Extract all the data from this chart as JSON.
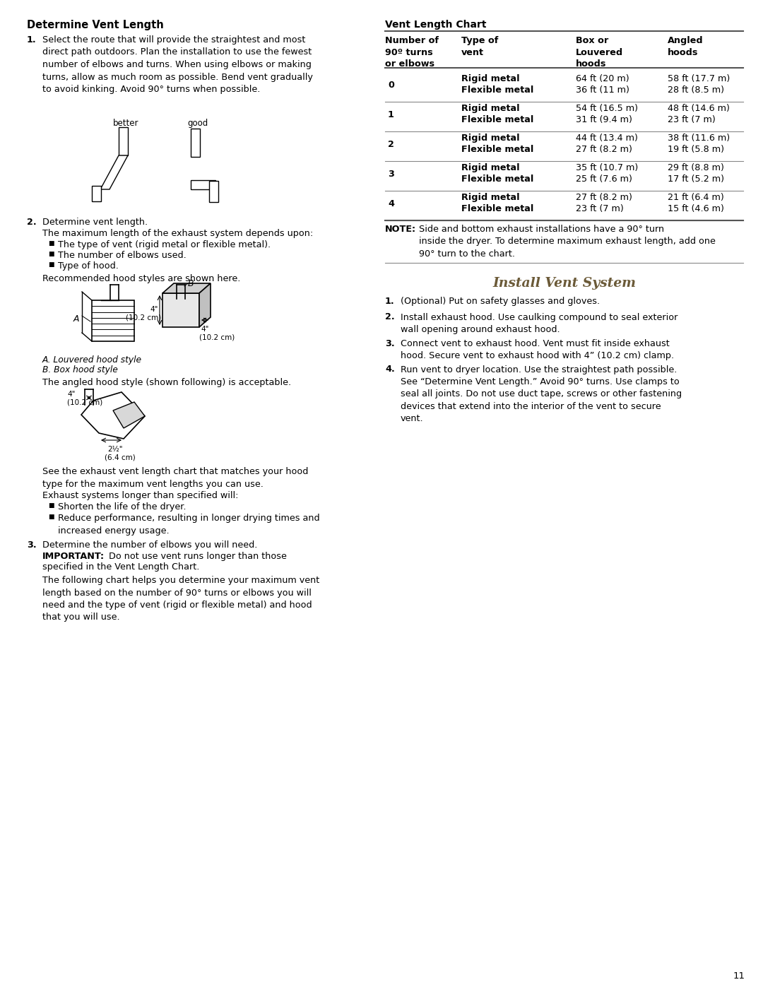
{
  "page_num": "11",
  "bg_color": "#ffffff",
  "left_col": {
    "section_title": "Determine Vent Length",
    "bullet1": "The type of vent (rigid metal or flexible metal).",
    "bullet2": "The number of elbows used.",
    "bullet3": "Type of hood.",
    "caption_A": "A. Louvered hood style",
    "caption_B": "B. Box hood style"
  },
  "right_col": {
    "chart_title": "Vent Length Chart",
    "col_headers": [
      "Number of\n90º turns\nor elbows",
      "Type of\nvent",
      "Box or\nLouvered\nhoods",
      "Angled\nhoods"
    ],
    "rows": [
      {
        "num": "0",
        "types": [
          "Rigid metal",
          "Flexible metal"
        ],
        "box_louvered": [
          "64 ft (20 m)",
          "36 ft (11 m)"
        ],
        "angled": [
          "58 ft (17.7 m)",
          "28 ft (8.5 m)"
        ]
      },
      {
        "num": "1",
        "types": [
          "Rigid metal",
          "Flexible metal"
        ],
        "box_louvered": [
          "54 ft (16.5 m)",
          "31 ft (9.4 m)"
        ],
        "angled": [
          "48 ft (14.6 m)",
          "23 ft (7 m)"
        ]
      },
      {
        "num": "2",
        "types": [
          "Rigid metal",
          "Flexible metal"
        ],
        "box_louvered": [
          "44 ft (13.4 m)",
          "27 ft (8.2 m)"
        ],
        "angled": [
          "38 ft (11.6 m)",
          "19 ft (5.8 m)"
        ]
      },
      {
        "num": "3",
        "types": [
          "Rigid metal",
          "Flexible metal"
        ],
        "box_louvered": [
          "35 ft (10.7 m)",
          "25 ft (7.6 m)"
        ],
        "angled": [
          "29 ft (8.8 m)",
          "17 ft (5.2 m)"
        ]
      },
      {
        "num": "4",
        "types": [
          "Rigid metal",
          "Flexible metal"
        ],
        "box_louvered": [
          "27 ft (8.2 m)",
          "23 ft (7 m)"
        ],
        "angled": [
          "21 ft (6.4 m)",
          "15 ft (4.6 m)"
        ]
      }
    ],
    "install_steps": [
      {
        "num": "1.",
        "text": "(Optional) Put on safety glasses and gloves."
      },
      {
        "num": "2.",
        "text": "Install exhaust hood. Use caulking compound to seal exterior\nwall opening around exhaust hood."
      },
      {
        "num": "3.",
        "text": "Connect vent to exhaust hood. Vent must fit inside exhaust\nhood. Secure vent to exhaust hood with 4” (10.2 cm) clamp."
      },
      {
        "num": "4.",
        "text": "Run vent to dryer location. Use the straightest path possible.\nSee “Determine Vent Length.” Avoid 90° turns. Use clamps to\nseal all joints. Do not use duct tape, screws or other fastening\ndevices that extend into the interior of the vent to secure\nvent."
      }
    ]
  }
}
